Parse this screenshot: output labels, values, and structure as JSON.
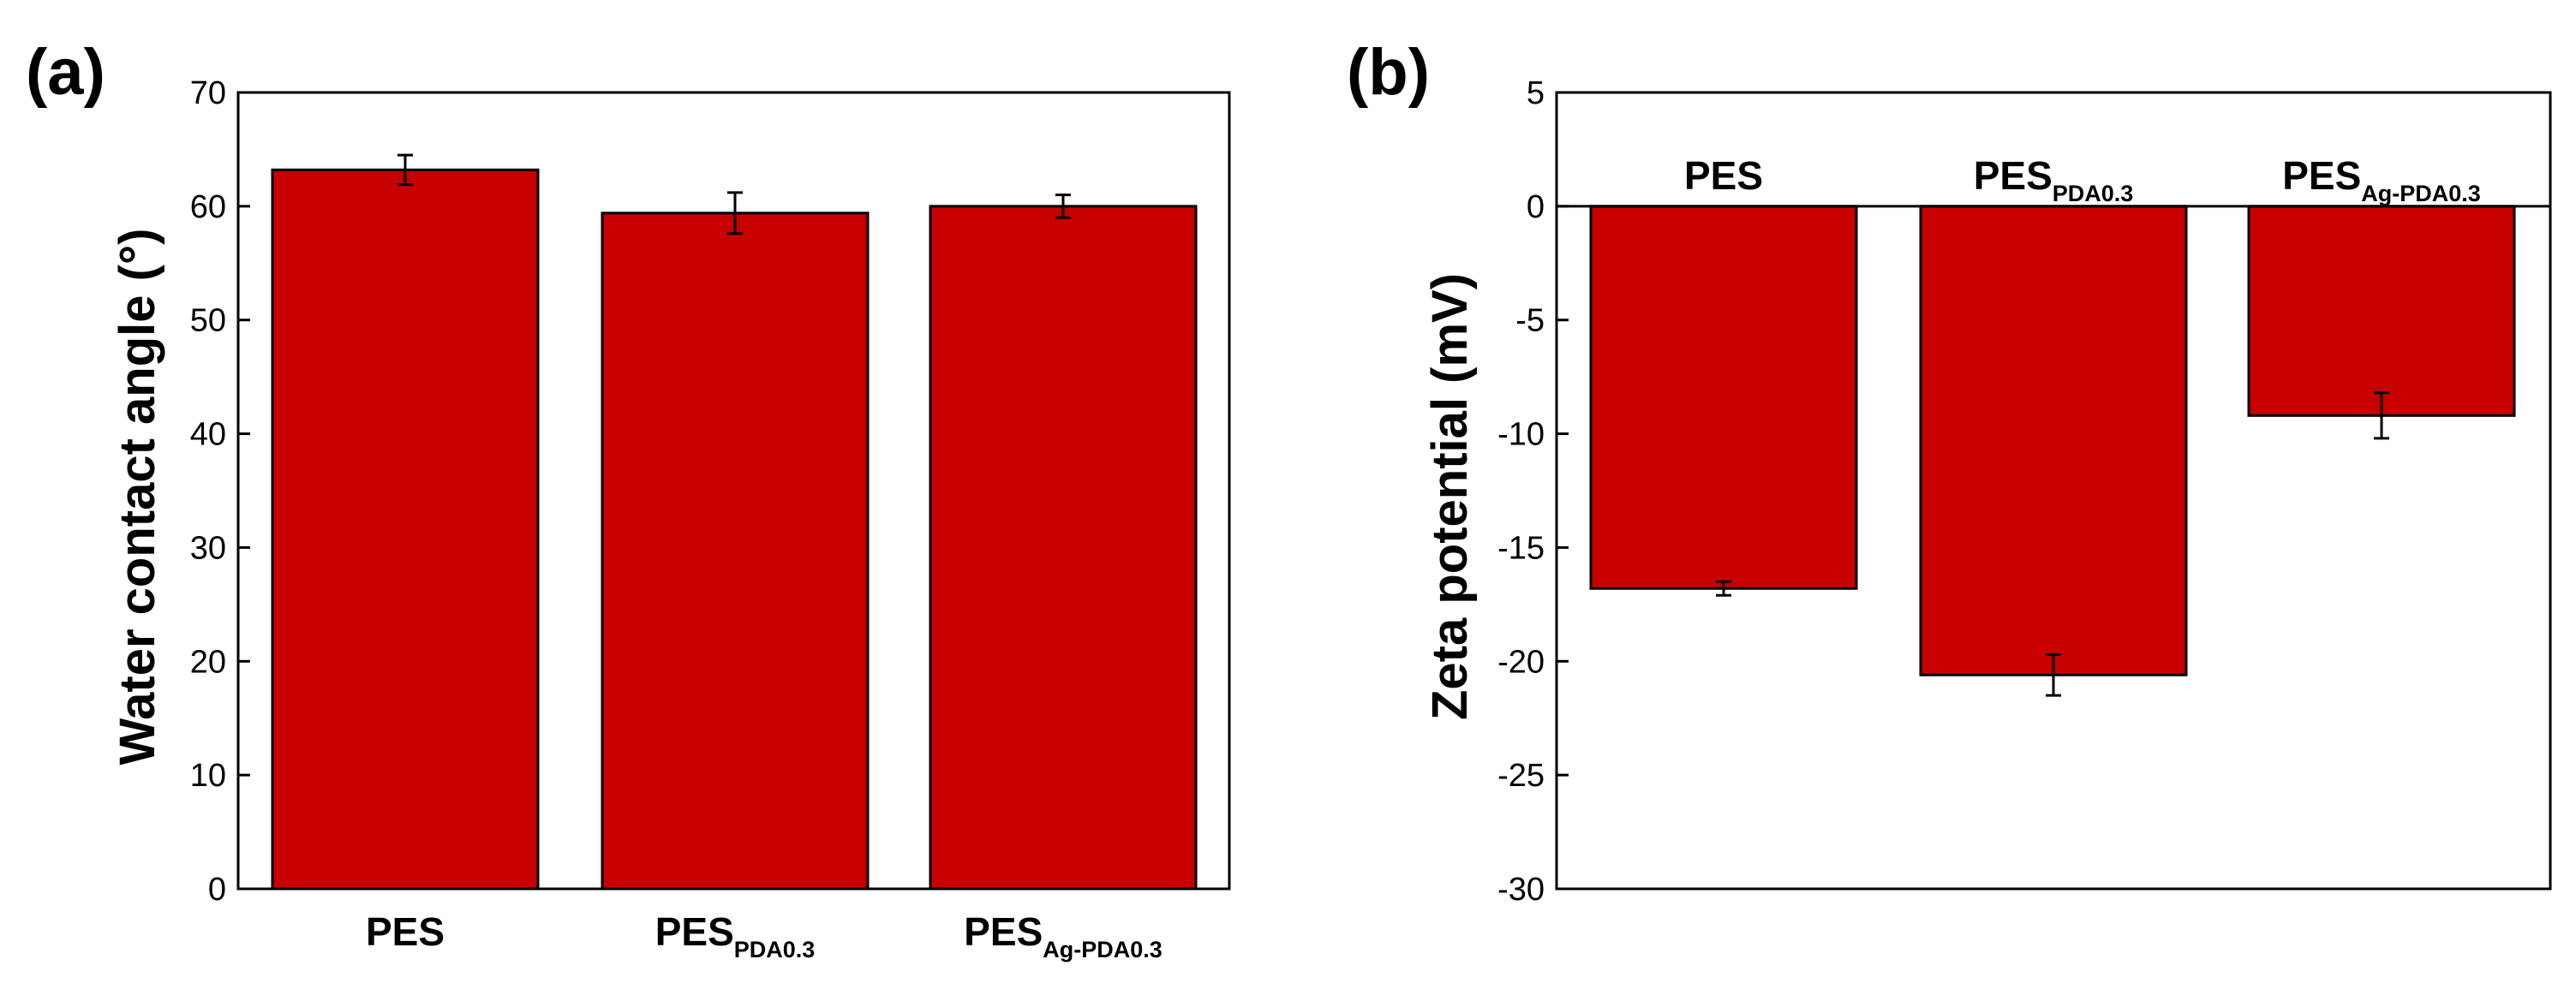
{
  "chart_data": [
    {
      "panel_label": "(a)",
      "type": "bar",
      "ylabel": "Water contact angle (°)",
      "xlabel": "",
      "ylim": [
        0,
        70
      ],
      "yticks": [
        0,
        10,
        20,
        30,
        40,
        50,
        60,
        70
      ],
      "categories": [
        {
          "main": "PES",
          "sub": ""
        },
        {
          "main": "PES",
          "sub": "PDA0.3"
        },
        {
          "main": "PES",
          "sub": "Ag-PDA0.3"
        }
      ],
      "values": [
        63.2,
        59.4,
        60.0
      ],
      "errors": [
        1.3,
        1.8,
        1.0
      ],
      "category_position": "below-axis"
    },
    {
      "panel_label": "(b)",
      "type": "bar",
      "ylabel": "Zeta potential (mV)",
      "xlabel": "",
      "ylim": [
        -30,
        5
      ],
      "yticks": [
        5,
        0,
        -5,
        -10,
        -15,
        -20,
        -25,
        -30
      ],
      "categories": [
        {
          "main": "PES",
          "sub": ""
        },
        {
          "main": "PES",
          "sub": "PDA0.3"
        },
        {
          "main": "PES",
          "sub": "Ag-PDA0.3"
        }
      ],
      "values": [
        -16.8,
        -20.6,
        -9.2
      ],
      "errors": [
        0.3,
        0.9,
        1.0
      ],
      "category_position": "above-zero-line"
    }
  ],
  "colors": {
    "bar_fill": "#c80000",
    "bar_stroke": "#000000",
    "axis": "#000000"
  }
}
